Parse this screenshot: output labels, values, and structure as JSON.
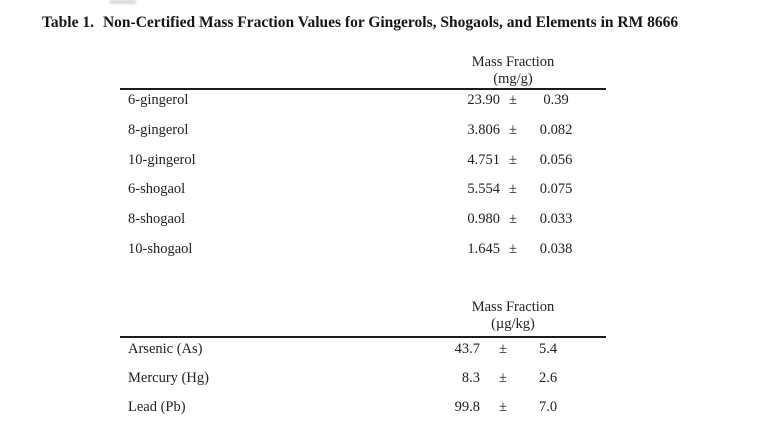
{
  "document": {
    "title": {
      "label": "Table 1.",
      "text": "Non-Certified Mass Fraction Values for Gingerols, Shogaols, and Elements in RM 8666"
    }
  },
  "tables": [
    {
      "name": "gingerols-shogaols",
      "header": {
        "title": "Mass Fraction",
        "unit": "(mg/g)"
      },
      "rows": [
        {
          "analyte": "6-gingerol",
          "value": "23.90",
          "pm": "±",
          "uncertainty": "0.39"
        },
        {
          "analyte": "8-gingerol",
          "value": "3.806",
          "pm": "±",
          "uncertainty": "0.082"
        },
        {
          "analyte": "10-gingerol",
          "value": "4.751",
          "pm": "±",
          "uncertainty": "0.056"
        },
        {
          "analyte": "6-shogaol",
          "value": "5.554",
          "pm": "±",
          "uncertainty": "0.075"
        },
        {
          "analyte": "8-shogaol",
          "value": "0.980",
          "pm": "±",
          "uncertainty": "0.033"
        },
        {
          "analyte": "10-shogaol",
          "value": "1.645",
          "pm": "±",
          "uncertainty": "0.038"
        }
      ]
    },
    {
      "name": "elements",
      "header": {
        "title": "Mass Fraction",
        "unit": "(µg/kg)"
      },
      "rows": [
        {
          "analyte": "Arsenic (As)",
          "value": "43.7",
          "pm": "±",
          "uncertainty": "5.4"
        },
        {
          "analyte": "Mercury (Hg)",
          "value": "8.3",
          "pm": "±",
          "uncertainty": "2.6"
        },
        {
          "analyte": "Lead (Pb)",
          "value": "99.8",
          "pm": "±",
          "uncertainty": "7.0"
        }
      ]
    }
  ],
  "chart_data": [
    {
      "type": "table",
      "title": "Non-Certified Mass Fraction Values for Gingerols and Shogaols in RM 8666",
      "ylabel": "Mass Fraction (mg/g)",
      "categories": [
        "6-gingerol",
        "8-gingerol",
        "10-gingerol",
        "6-shogaol",
        "8-shogaol",
        "10-shogaol"
      ],
      "values": [
        23.9,
        3.806,
        4.751,
        5.554,
        0.98,
        1.645
      ],
      "uncertainties": [
        0.39,
        0.082,
        0.056,
        0.075,
        0.033,
        0.038
      ]
    },
    {
      "type": "table",
      "title": "Non-Certified Mass Fraction Values for Elements in RM 8666",
      "ylabel": "Mass Fraction (µg/kg)",
      "categories": [
        "Arsenic (As)",
        "Mercury (Hg)",
        "Lead (Pb)"
      ],
      "values": [
        43.7,
        8.3,
        99.8
      ],
      "uncertainties": [
        5.4,
        2.6,
        7.0
      ]
    }
  ]
}
